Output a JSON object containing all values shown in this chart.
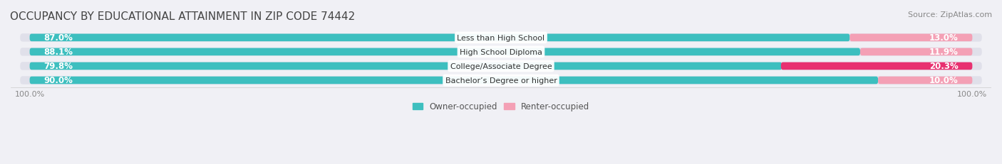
{
  "title": "OCCUPANCY BY EDUCATIONAL ATTAINMENT IN ZIP CODE 74442",
  "source": "Source: ZipAtlas.com",
  "categories": [
    "Less than High School",
    "High School Diploma",
    "College/Associate Degree",
    "Bachelor’s Degree or higher"
  ],
  "owner_values": [
    87.0,
    88.1,
    79.8,
    90.0
  ],
  "renter_values": [
    13.0,
    11.9,
    20.3,
    10.0
  ],
  "owner_color": "#3dbfbf",
  "renter_colors": [
    "#f4a0b5",
    "#f4a0b5",
    "#e83070",
    "#f4a0b5"
  ],
  "bar_height": 0.55,
  "background_color": "#f0f0f5",
  "bar_bg_color": "#e0e0ea",
  "title_fontsize": 11,
  "source_fontsize": 8,
  "label_fontsize": 8.5,
  "axis_label_fontsize": 8,
  "legend_fontsize": 8.5
}
